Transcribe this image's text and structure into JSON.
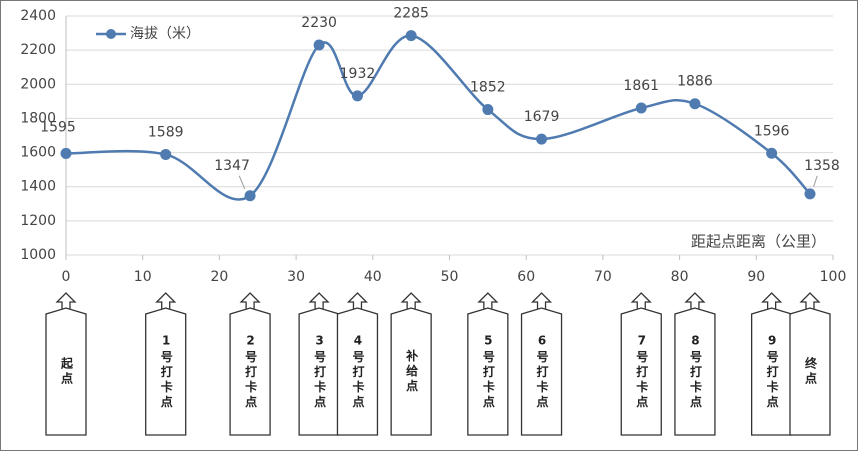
{
  "chart_data": {
    "type": "line",
    "x": [
      0,
      13,
      24,
      33,
      38,
      45,
      55,
      62,
      75,
      82,
      92,
      97
    ],
    "series": [
      {
        "name": "海拔（米）",
        "color": "#4f7bb0",
        "values": [
          1595,
          1589,
          1347,
          2230,
          1932,
          2285,
          1852,
          1679,
          1861,
          1886,
          1596,
          1358
        ]
      }
    ],
    "x_label": "距起点距离（公里）",
    "xlim": [
      0,
      100
    ],
    "xticks": [
      0,
      10,
      20,
      30,
      40,
      50,
      60,
      70,
      80,
      90,
      100
    ],
    "ylim": [
      1000,
      2400
    ],
    "yticks": [
      1000,
      1200,
      1400,
      1600,
      1800,
      2000,
      2200,
      2400
    ],
    "grid": true,
    "checkpoints": [
      "起点",
      "1号打卡点",
      "2号打卡点",
      "3号打卡点",
      "4号打卡点",
      "补给点",
      "5号打卡点",
      "6号打卡点",
      "7号打卡点",
      "8号打卡点",
      "9号打卡点",
      "终点"
    ]
  }
}
